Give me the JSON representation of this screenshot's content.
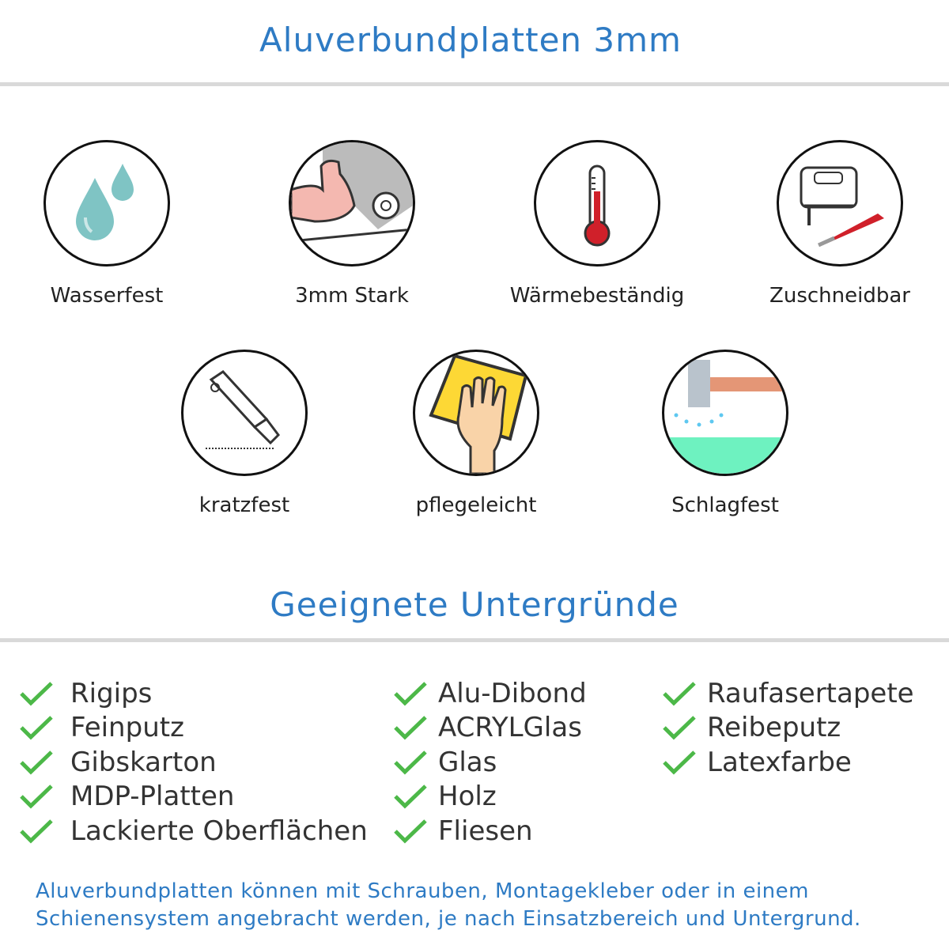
{
  "header": {
    "title": "Aluverbundplatten 3mm"
  },
  "features": [
    {
      "label": "Wasserfest",
      "icon": "water-drops-icon"
    },
    {
      "label": "3mm Stark",
      "icon": "strong-arm-icon"
    },
    {
      "label": "Wärmebeständig",
      "icon": "thermometer-icon"
    },
    {
      "label": "Zuschneidbar",
      "icon": "jigsaw-knife-icon"
    },
    {
      "label": "kratzfest",
      "icon": "cutter-knife-icon"
    },
    {
      "label": "pflegeleicht",
      "icon": "hand-sponge-icon"
    },
    {
      "label": "Schlagfest",
      "icon": "hammer-icon"
    }
  ],
  "surfaces": {
    "title": "Geeignete Untergründe",
    "columns": [
      [
        "Rigips",
        "Feinputz",
        "Gibskarton",
        "MDP-Platten",
        "Lackierte Oberflächen"
      ],
      [
        "Alu-Dibond",
        "ACRYLGlas",
        "Glas",
        "Holz",
        "Fliesen"
      ],
      [
        "Raufasertapete",
        "Reibeputz",
        "Latexfarbe"
      ]
    ]
  },
  "footer": {
    "line1": "Aluverbundplatten können mit Schrauben, Montagekleber oder in einem",
    "line2": "Schienensystem angebracht werden, je nach Einsatzbereich und Untergrund."
  },
  "colors": {
    "accent": "#2e7bc4",
    "check": "#4cb848",
    "rule": "#d9d9d9"
  }
}
